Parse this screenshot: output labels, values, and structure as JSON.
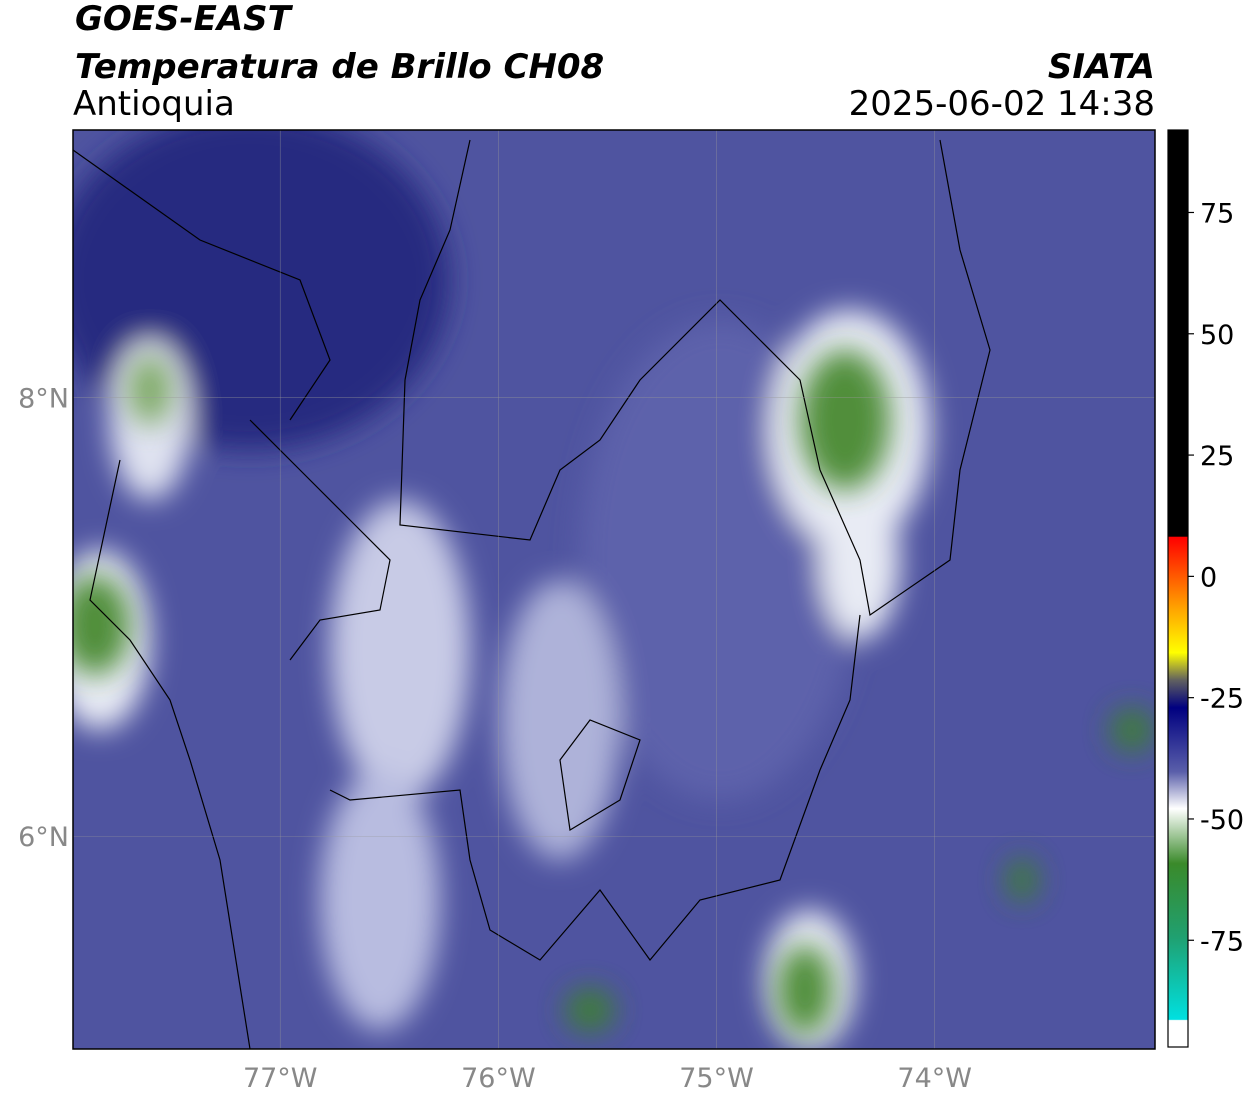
{
  "header": {
    "title": "GOES-EAST",
    "subtitle": "Temperatura de Brillo CH08",
    "region": "Antioquia",
    "source": "SIATA",
    "datetime": "2025-06-02 14:38"
  },
  "map": {
    "lon_range": [
      -77.95,
      -72.99
    ],
    "lat_range": [
      5.03,
      9.22
    ],
    "lon_ticks": [
      {
        "value": -77,
        "label": "77°W"
      },
      {
        "value": -76,
        "label": "76°W"
      },
      {
        "value": -75,
        "label": "75°W"
      },
      {
        "value": -74,
        "label": "74°W"
      }
    ],
    "lat_ticks": [
      {
        "value": 8,
        "label": "8°N"
      },
      {
        "value": 6,
        "label": "6°N"
      }
    ]
  },
  "colorbar": {
    "range": [
      -97,
      92
    ],
    "ticks": [
      75,
      50,
      25,
      0,
      -25,
      -50,
      -75
    ]
  }
}
